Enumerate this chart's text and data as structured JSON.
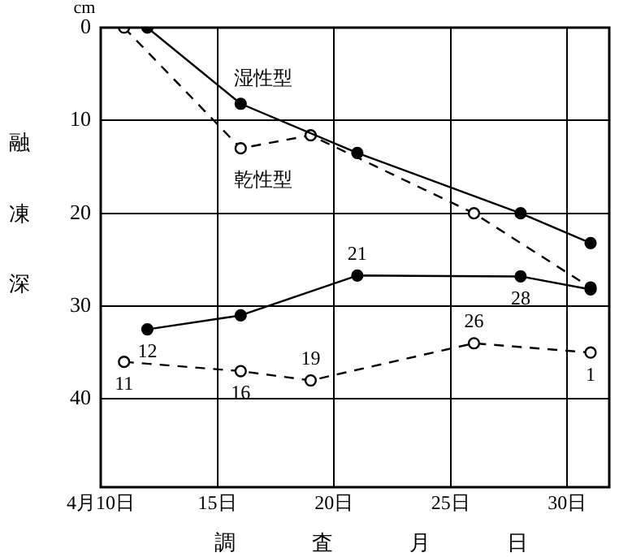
{
  "chart_data": {
    "type": "line",
    "xlabel": "調査月日",
    "ylabel": "融凍深",
    "annotations": [
      "cm",
      {
        "text": "12",
        "x": 12,
        "y": 32.5
      },
      {
        "text": "21",
        "x": 21,
        "y": 26.7
      },
      {
        "text": "28",
        "x": 28,
        "y": 26.8
      },
      {
        "text": "11",
        "x": 11,
        "y": 36
      },
      {
        "text": "16",
        "x": 16,
        "y": 37
      },
      {
        "text": "19",
        "x": 19,
        "y": 38
      },
      {
        "text": "26",
        "x": 26,
        "y": 34
      },
      {
        "text": "1",
        "x": 31,
        "y": 35
      }
    ],
    "xlim": [
      10,
      31.8
    ],
    "xticks": [
      {
        "value": 10,
        "label": "4月10日"
      },
      {
        "value": 15,
        "label": "15日"
      },
      {
        "value": 20,
        "label": "20日"
      },
      {
        "value": 25,
        "label": "25日"
      },
      {
        "value": 30,
        "label": "30日"
      }
    ],
    "ylim": [
      49.5,
      0
    ],
    "yticks": [
      0,
      10,
      20,
      30,
      40
    ],
    "grid": true,
    "legend": false,
    "marker": "circle",
    "series": [
      {
        "name": "湿性型",
        "color": "#000000",
        "line_style": "solid",
        "x": [
          12,
          16,
          21,
          28,
          31
        ],
        "values": [
          0,
          8.2,
          13.5,
          20,
          23.2
        ]
      },
      {
        "name": "乾性型",
        "color": "#000000",
        "line_style": "dashed",
        "x": [
          11,
          16,
          19,
          26,
          31
        ],
        "values": [
          0,
          13,
          11.6,
          20,
          28
        ]
      },
      {
        "color": "#000000",
        "line_style": "solid",
        "x": [
          12,
          16,
          21,
          28,
          31
        ],
        "values": [
          32.5,
          31,
          26.7,
          26.8,
          28.2
        ]
      },
      {
        "color": "#000000",
        "line_style": "dashed",
        "x": [
          11,
          16,
          19,
          26,
          31
        ],
        "values": [
          36,
          37,
          38,
          34,
          35
        ]
      }
    ]
  }
}
